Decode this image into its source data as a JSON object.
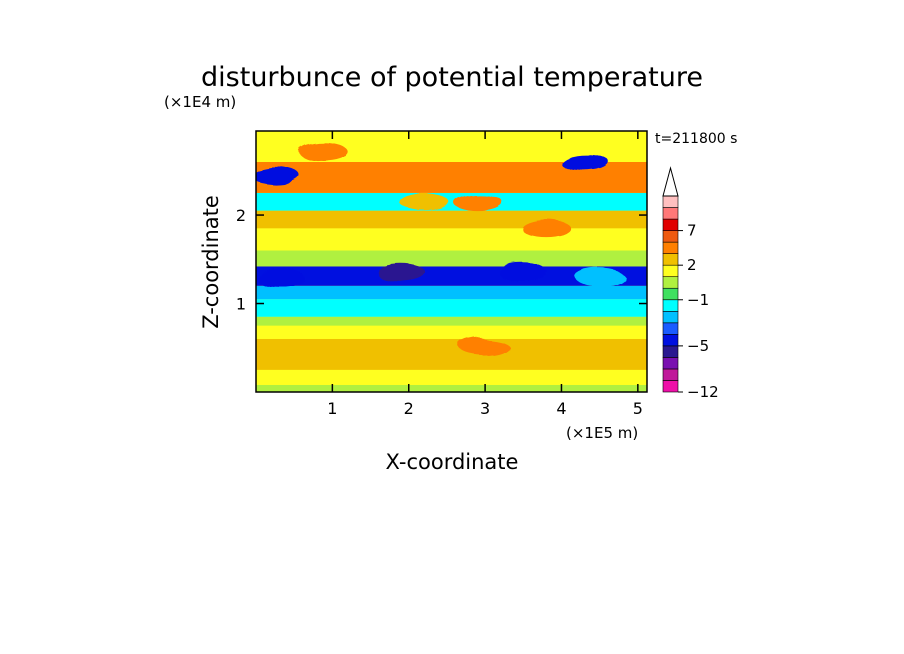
{
  "chart_data": {
    "type": "heatmap",
    "title": "disturbunce of potential temperature",
    "xlabel": "X-coordinate",
    "ylabel": "Z-coordinate",
    "x_scale_label": "(×1E5 m)",
    "y_scale_label": "(×1E4 m)",
    "time_label": "t=211800 s",
    "xlim": [
      0,
      5.12
    ],
    "ylim": [
      0,
      2.95
    ],
    "x_ticks": [
      1,
      2,
      3,
      4,
      5
    ],
    "x_tick_labels": [
      "1",
      "2",
      "3",
      "4",
      "5"
    ],
    "y_ticks": [
      1,
      2
    ],
    "y_tick_labels": [
      "1",
      "2"
    ],
    "colorbar": {
      "levels": [
        -12,
        -10,
        -8,
        -6,
        -5,
        -4,
        -3,
        -2,
        -1,
        0,
        1,
        2,
        3,
        5,
        7,
        9,
        11
      ],
      "colors": [
        "#ee10a8",
        "#c0189a",
        "#7a10b0",
        "#2a1890",
        "#0010e0",
        "#1a5cff",
        "#00c0ff",
        "#00ffff",
        "#40e060",
        "#b0f040",
        "#ffff20",
        "#f0c000",
        "#ff8000",
        "#ee5a10",
        "#e00000",
        "#ff7878",
        "#ffc0c0"
      ],
      "extend": "max",
      "tick_values": [
        -12,
        -5,
        -1,
        2,
        7
      ],
      "tick_labels": [
        "−12",
        "−5",
        "−1",
        "2",
        "7"
      ]
    },
    "field_by_height": {
      "z_bands": [
        {
          "z_from": 0.0,
          "z_to": 0.08,
          "value": 0.5
        },
        {
          "z_from": 0.08,
          "z_to": 0.25,
          "value": 1.5
        },
        {
          "z_from": 0.25,
          "z_to": 0.6,
          "value": 2.5
        },
        {
          "z_from": 0.6,
          "z_to": 0.75,
          "value": 1.5
        },
        {
          "z_from": 0.75,
          "z_to": 0.85,
          "value": 0.5
        },
        {
          "z_from": 0.85,
          "z_to": 1.05,
          "value": -1.5
        },
        {
          "z_from": 1.05,
          "z_to": 1.2,
          "value": -2.5
        },
        {
          "z_from": 1.2,
          "z_to": 1.42,
          "value": -4.5
        },
        {
          "z_from": 1.42,
          "z_to": 1.6,
          "value": 0.5
        },
        {
          "z_from": 1.6,
          "z_to": 1.85,
          "value": 1.5
        },
        {
          "z_from": 1.85,
          "z_to": 2.05,
          "value": 2.5
        },
        {
          "z_from": 2.05,
          "z_to": 2.25,
          "value": -1.5
        },
        {
          "z_from": 2.25,
          "z_to": 2.6,
          "value": 4
        },
        {
          "z_from": 2.6,
          "z_to": 2.95,
          "value": 1.5
        }
      ]
    },
    "features": [
      {
        "x": 0.25,
        "z": 2.45,
        "value": -4.5
      },
      {
        "x": 4.3,
        "z": 2.6,
        "value": -4.5
      },
      {
        "x": 3.8,
        "z": 1.85,
        "value": 4
      },
      {
        "x": 1.9,
        "z": 1.35,
        "value": -5.5
      },
      {
        "x": 0.9,
        "z": 2.7,
        "value": 4
      },
      {
        "x": 2.2,
        "z": 2.15,
        "value": 2.5
      },
      {
        "x": 3.0,
        "z": 0.5,
        "value": 4
      },
      {
        "x": 2.9,
        "z": 2.15,
        "value": 4
      },
      {
        "x": 3.5,
        "z": 1.35,
        "value": -4.5
      },
      {
        "x": 4.5,
        "z": 1.3,
        "value": -2.5
      },
      {
        "x": 0.3,
        "z": 1.3,
        "value": -4.5
      }
    ]
  }
}
